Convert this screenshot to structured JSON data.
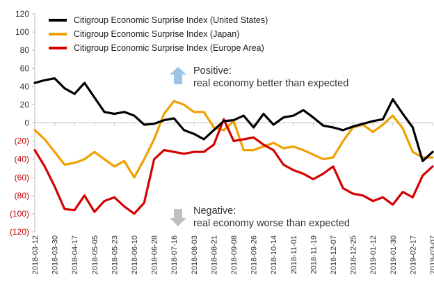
{
  "chart_data": {
    "type": "line",
    "title": "",
    "xlabel": "",
    "ylabel": "",
    "ylim": [
      -120,
      120
    ],
    "y_ticks": [
      {
        "value": 120,
        "label": "120"
      },
      {
        "value": 100,
        "label": "100"
      },
      {
        "value": 80,
        "label": "80"
      },
      {
        "value": 60,
        "label": "60"
      },
      {
        "value": 40,
        "label": "40"
      },
      {
        "value": 20,
        "label": "20"
      },
      {
        "value": 0,
        "label": "0"
      },
      {
        "value": -20,
        "label": "(20)"
      },
      {
        "value": -40,
        "label": "(40)"
      },
      {
        "value": -60,
        "label": "(60)"
      },
      {
        "value": -80,
        "label": "(80)"
      },
      {
        "value": -100,
        "label": "(100)"
      },
      {
        "value": -120,
        "label": "(120)"
      }
    ],
    "x_tick_labels": [
      "2018-03-12",
      "2018-03-30",
      "2018-04-17",
      "2018-05-05",
      "2018-05-23",
      "2018-06-10",
      "2018-06-28",
      "2018-07-16",
      "2018-08-03",
      "2018-08-21",
      "2018-09-08",
      "2018-09-26",
      "2018-10-14",
      "2018-11-01",
      "2018-11-19",
      "2018-12-07",
      "2018-12-25",
      "2019-01-12",
      "2019-01-30",
      "2019-02-17",
      "2019-03-07"
    ],
    "negative_color": "#c00000",
    "legend_position": "top-left",
    "grid": false,
    "x": [
      "2018-03-12",
      "2018-03-21",
      "2018-03-30",
      "2018-04-08",
      "2018-04-17",
      "2018-04-26",
      "2018-05-05",
      "2018-05-14",
      "2018-05-23",
      "2018-06-01",
      "2018-06-10",
      "2018-06-19",
      "2018-06-28",
      "2018-07-07",
      "2018-07-16",
      "2018-07-25",
      "2018-08-03",
      "2018-08-12",
      "2018-08-21",
      "2018-08-30",
      "2018-09-08",
      "2018-09-17",
      "2018-09-26",
      "2018-10-05",
      "2018-10-14",
      "2018-10-23",
      "2018-11-01",
      "2018-11-10",
      "2018-11-19",
      "2018-11-28",
      "2018-12-07",
      "2018-12-16",
      "2018-12-25",
      "2019-01-03",
      "2019-01-12",
      "2019-01-21",
      "2019-01-30",
      "2019-02-08",
      "2019-02-17",
      "2019-02-26",
      "2019-03-07"
    ],
    "series": [
      {
        "name": "Citigroup Economic Surprise Index (United States)",
        "color": "#000000",
        "values": [
          44,
          47,
          49,
          38,
          32,
          44,
          28,
          12,
          10,
          12,
          8,
          -2,
          -1,
          3,
          5,
          -8,
          -12,
          -18,
          -8,
          2,
          3,
          8,
          -5,
          10,
          -2,
          6,
          8,
          14,
          6,
          -3,
          -5,
          -8,
          -4,
          -1,
          2,
          4,
          26,
          10,
          -5,
          -42,
          -32
        ]
      },
      {
        "name": "Citigroup Economic Surprise Index (Japan)",
        "color": "#f0a000",
        "values": [
          -8,
          -18,
          -32,
          -46,
          -44,
          -40,
          -32,
          -40,
          -48,
          -42,
          -60,
          -40,
          -18,
          10,
          24,
          20,
          12,
          12,
          -5,
          -8,
          2,
          -30,
          -30,
          -26,
          -22,
          -28,
          -26,
          -30,
          -35,
          -40,
          -38,
          -20,
          -5,
          -2,
          -10,
          -2,
          8,
          -6,
          -32,
          -38,
          -38
        ]
      },
      {
        "name": "Citigroup Economic Surprise Index (Europe Area)",
        "color": "#d40000",
        "values": [
          -30,
          -48,
          -70,
          -95,
          -96,
          -80,
          -98,
          -86,
          -82,
          -92,
          -100,
          -88,
          -40,
          -30,
          -32,
          -34,
          -32,
          -32,
          -24,
          4,
          -20,
          -18,
          -16,
          -24,
          -30,
          -46,
          -52,
          -56,
          -62,
          -56,
          -48,
          -72,
          -78,
          -80,
          -86,
          -82,
          -90,
          -76,
          -82,
          -58,
          -48
        ]
      }
    ]
  },
  "annotations": {
    "positive": {
      "title": "Positive:",
      "text": "real economy better than expected",
      "arrow_icon": "up-arrow-icon",
      "arrow_color": "#9dc3e6"
    },
    "negative": {
      "title": "Negative:",
      "text": "real economy worse than expected",
      "arrow_icon": "down-arrow-icon",
      "arrow_color": "#bfbfbf"
    }
  }
}
